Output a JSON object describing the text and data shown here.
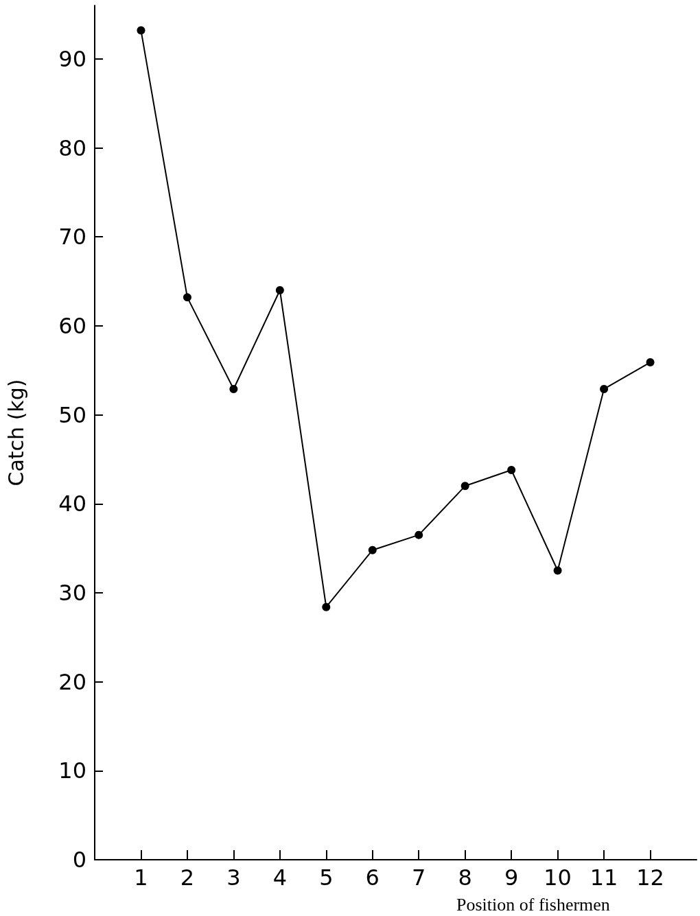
{
  "chart_data": {
    "type": "line",
    "xlabel": "Position of fishermen",
    "ylabel": "Catch (kg)",
    "x": [
      1,
      2,
      3,
      4,
      5,
      6,
      7,
      8,
      9,
      10,
      11,
      12
    ],
    "series": [
      {
        "color": "#000000",
        "values": [
          93.2,
          63.2,
          52.9,
          64,
          28.4,
          34.8,
          36.5,
          42,
          43.8,
          32.5,
          52.9,
          55.9
        ]
      }
    ],
    "xlim": [
      0,
      13
    ],
    "xticks": [
      1,
      2,
      3,
      4,
      5,
      6,
      7,
      8,
      9,
      10,
      11,
      12
    ],
    "ylim": [
      0,
      96
    ],
    "yticks": [
      0,
      10,
      20,
      30,
      40,
      50,
      60,
      70,
      80,
      90
    ],
    "grid": false,
    "marker": "circle",
    "line_style": "solid"
  }
}
